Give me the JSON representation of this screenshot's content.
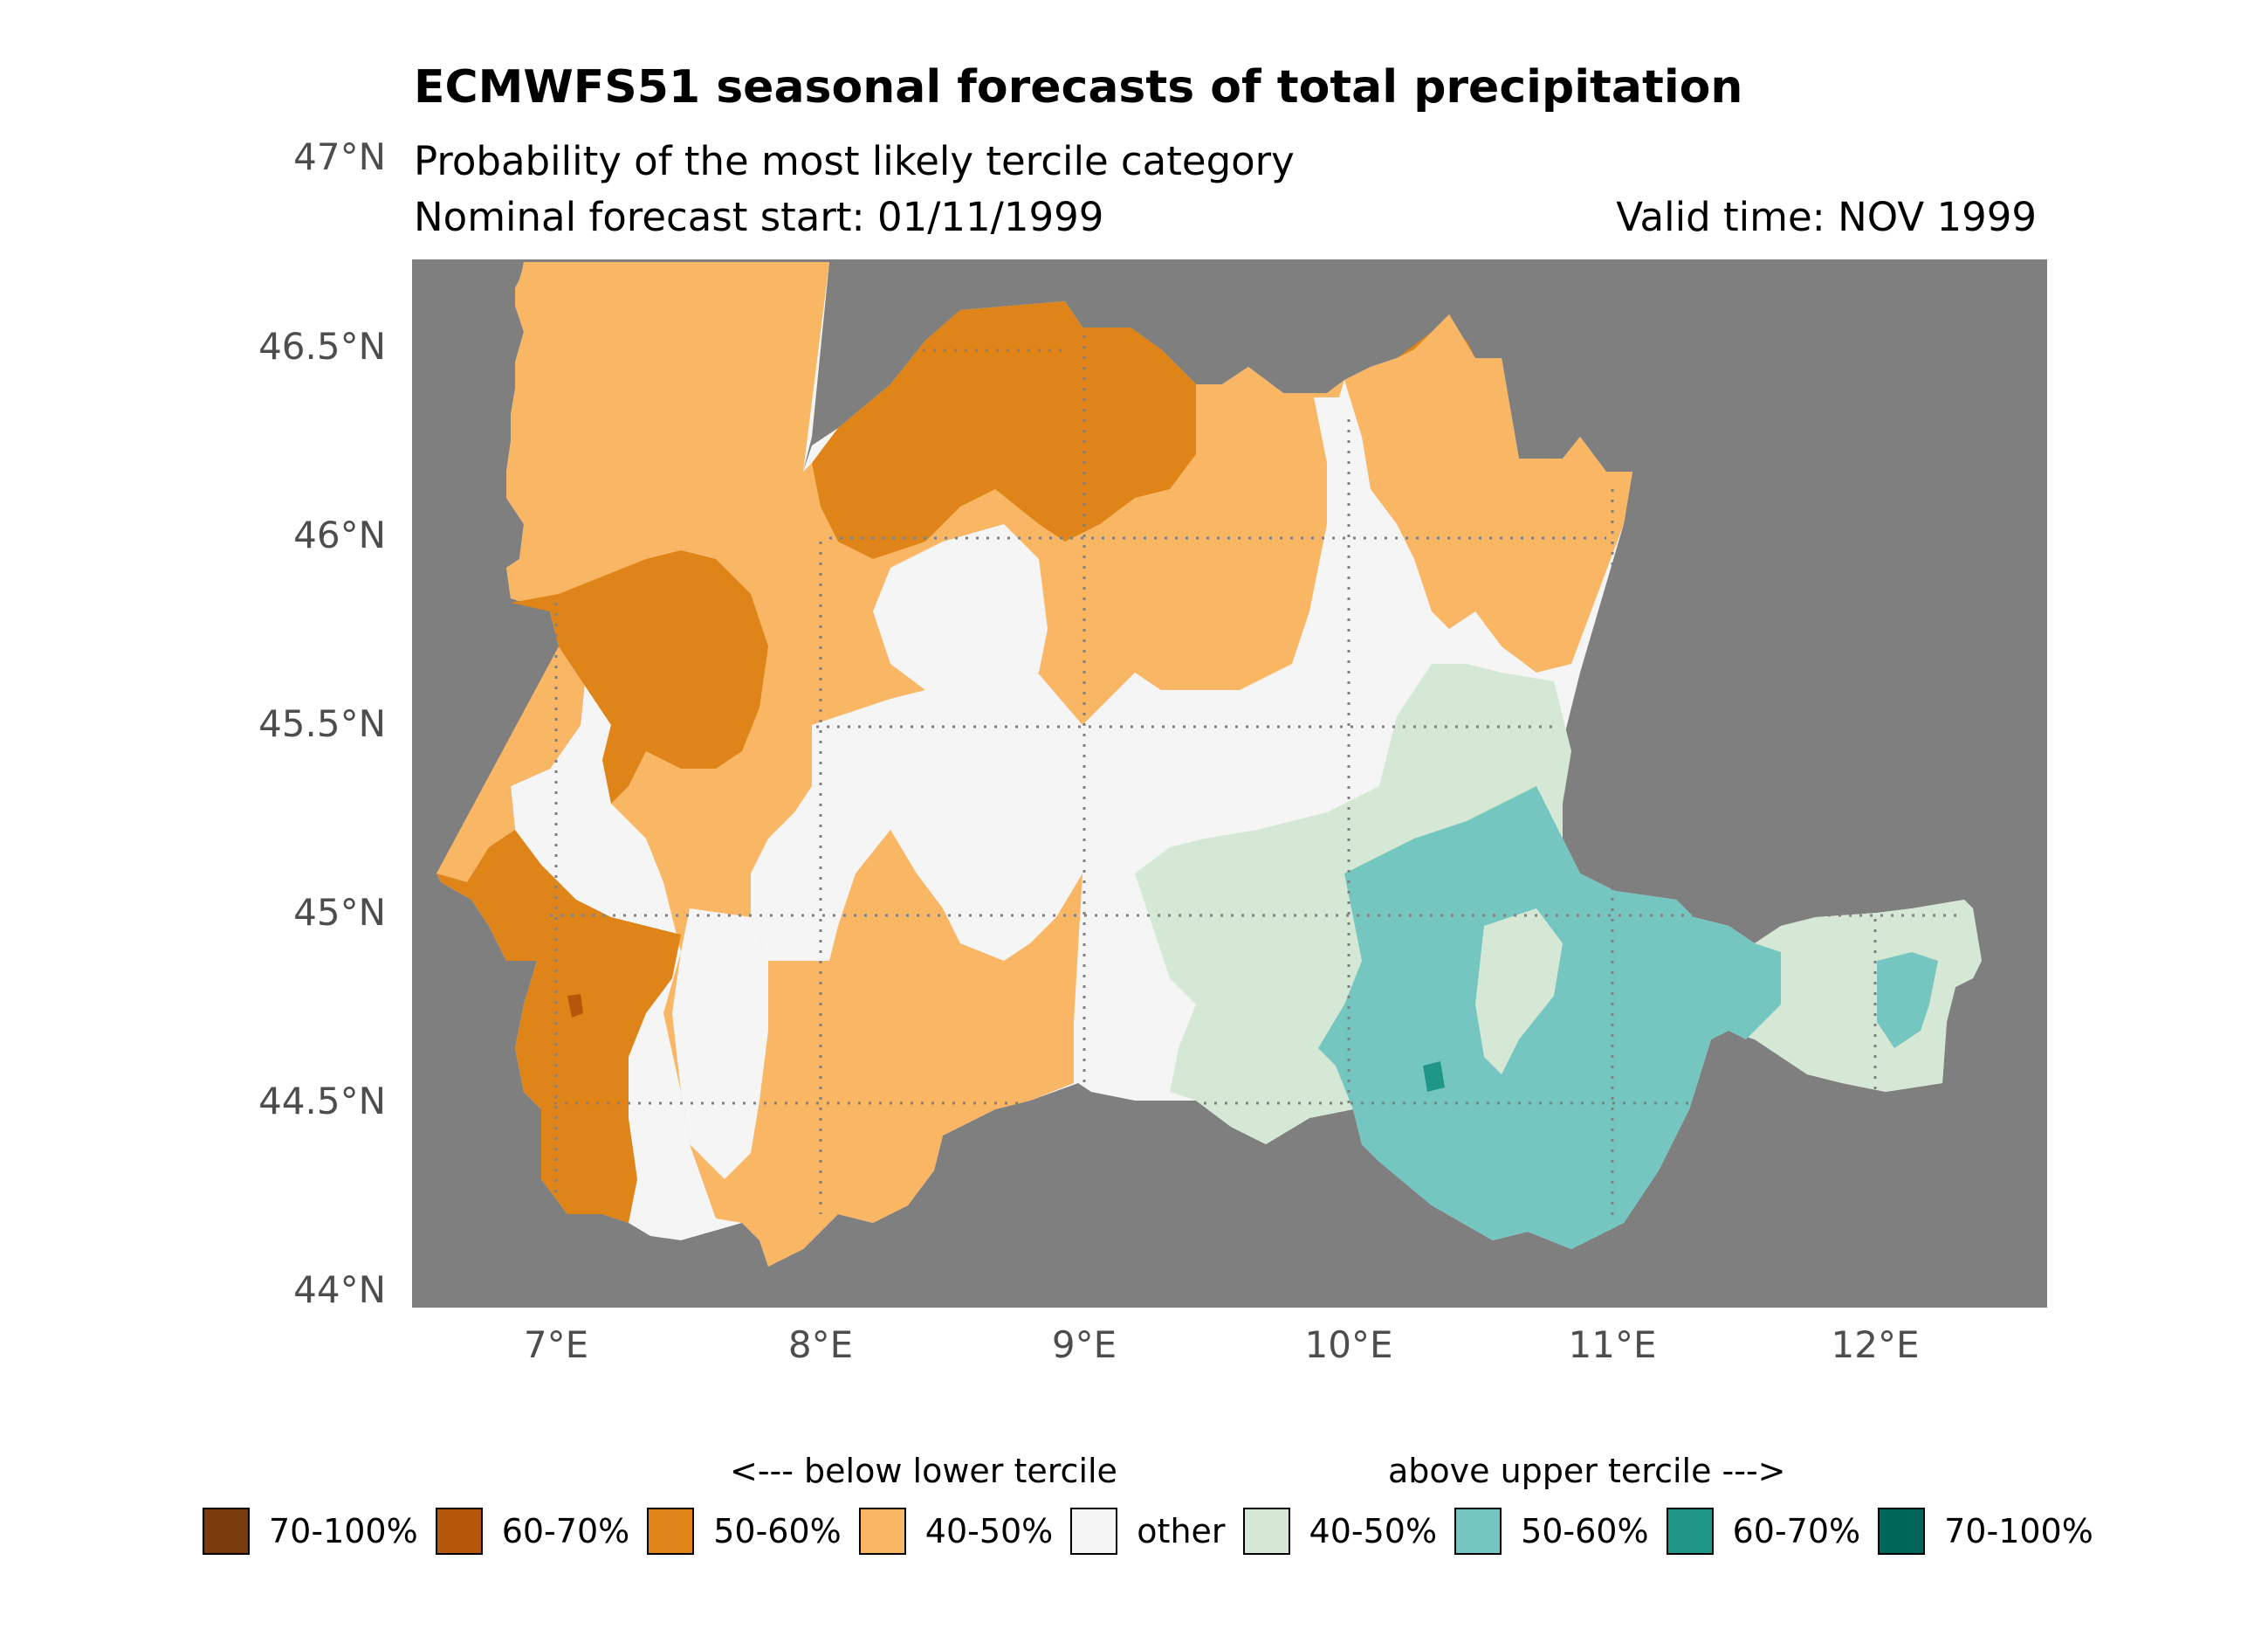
{
  "title": "ECMWFS51 seasonal forecasts of total precipitation",
  "subtitle": "Probability of the most likely tercile category",
  "forecast_start": "Nominal forecast start: 01/11/1999",
  "valid_time": "Valid time: NOV 1999",
  "colors": {
    "background": "#7f7f7f",
    "grid": "#808080",
    "other": "#f5f5f5",
    "below_40_50": "#f9b665",
    "below_50_60": "#df8418",
    "below_60_70": "#b4570a",
    "below_70_100": "#7a3b0c",
    "above_40_50": "#d5e8d6",
    "above_50_60": "#75c6c1",
    "above_60_70": "#1f9688",
    "above_70_100": "#00665a"
  },
  "axes": {
    "lat_labels": [
      "47°N",
      "46.5°N",
      "46°N",
      "45.5°N",
      "45°N",
      "44.5°N",
      "44°N"
    ],
    "lon_labels": [
      "7°E",
      "8°E",
      "9°E",
      "10°E",
      "11°E",
      "12°E"
    ]
  },
  "legend": {
    "below_header": "<--- below lower tercile",
    "above_header": "above upper tercile --->",
    "items": [
      {
        "label": "70-100%",
        "color": "#7a3b0c"
      },
      {
        "label": "60-70%",
        "color": "#b4570a"
      },
      {
        "label": "50-60%",
        "color": "#df8418"
      },
      {
        "label": "40-50%",
        "color": "#f9b665"
      },
      {
        "label": "other",
        "color": "#f5f5f5"
      },
      {
        "label": "40-50%",
        "color": "#d5e8d6"
      },
      {
        "label": "50-60%",
        "color": "#75c6c1"
      },
      {
        "label": "60-70%",
        "color": "#1f9688"
      },
      {
        "label": "70-100%",
        "color": "#00665a"
      }
    ]
  }
}
